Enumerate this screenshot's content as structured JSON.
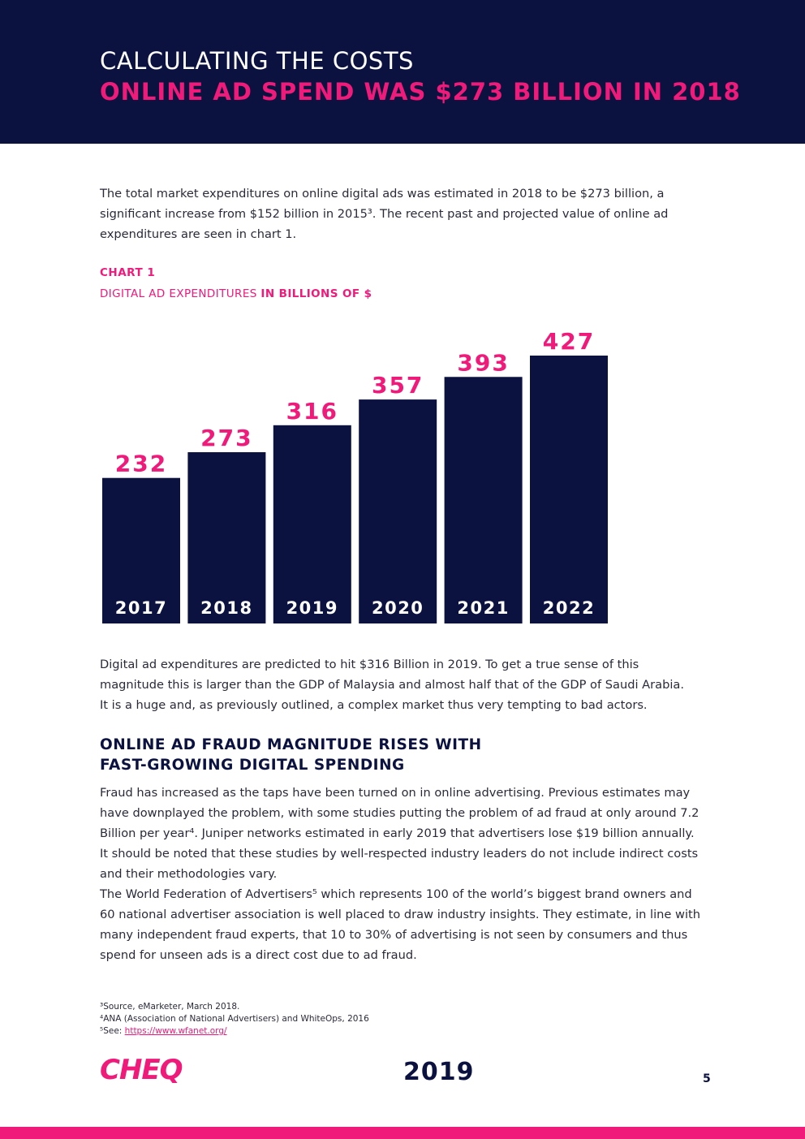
{
  "header": {
    "title": "CALCULATING THE COSTS",
    "subtitle": "ONLINE AD SPEND WAS $273 BILLION IN 2018"
  },
  "intro": {
    "line1": "The total market expenditures on online digital ads was estimated in 2018 to be $273 billion, a",
    "line2": "significant increase from $152 billion in 2015³. The recent past and projected value of online ad",
    "line3": "expenditures are seen in chart 1."
  },
  "chart_caption": {
    "label": "CHART 1",
    "sub_regular": "DIGITAL AD EXPENDITURES ",
    "sub_bold": "IN BILLIONS OF $"
  },
  "chart_data": {
    "type": "bar",
    "title": "DIGITAL AD EXPENDITURES IN BILLIONS OF $",
    "categories": [
      "2017",
      "2018",
      "2019",
      "2020",
      "2021",
      "2022"
    ],
    "values": [
      232,
      273,
      316,
      357,
      393,
      427
    ],
    "xlabel": "",
    "ylabel": "Billions of $",
    "ylim": [
      0,
      427
    ],
    "bar_color": "#0c1240",
    "label_color": "#ef1a7a"
  },
  "after_chart": {
    "line1": "Digital ad expenditures are predicted to hit $316 Billion in 2019. To get a true sense of this",
    "line2": "magnitude this is larger than the GDP of Malaysia and almost half that of the GDP of Saudi Arabia.",
    "line3": "It is a huge and, as previously outlined, a complex market thus very tempting to bad actors."
  },
  "section": {
    "title_line1": "ONLINE AD FRAUD MAGNITUDE RISES WITH",
    "title_line2": "FAST-GROWING DIGITAL SPENDING"
  },
  "fraud": {
    "lines": [
      "Fraud has increased as the taps have been turned on in online advertising. Previous estimates may",
      "have downplayed the problem, with some studies putting the problem of ad fraud at only around 7.2",
      "Billion per year⁴. Juniper networks estimated in early 2019 that advertisers lose $19 billion annually.",
      "It should be noted that these studies by well-respected industry leaders do not include indirect costs",
      "and their methodologies vary.",
      "The World Federation of Advertisers⁵ which represents 100 of the world’s biggest brand owners and",
      "60 national advertiser association is well placed to draw industry insights. They estimate, in line with",
      "many independent fraud experts, that 10 to 30% of advertising is not seen by consumers and thus",
      "spend for unseen ads is a direct cost due to ad fraud."
    ]
  },
  "footnotes": {
    "fn3": "³Source, eMarketer, March 2018.",
    "fn4": "⁴ANA (Association of National Advertisers) and WhiteOps, 2016",
    "fn5_prefix": "⁵See: ",
    "fn5_link": "https://www.wfanet.org/"
  },
  "footer": {
    "logo": "CHEQ",
    "year": "2019",
    "page": "5"
  },
  "colors": {
    "navy": "#0c1240",
    "pink": "#ef1a7a"
  }
}
